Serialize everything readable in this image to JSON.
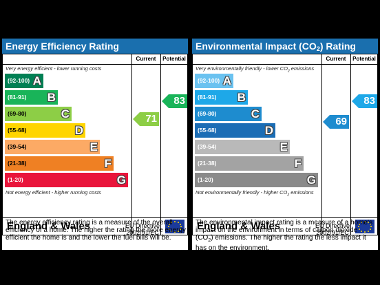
{
  "energy": {
    "title": "Energy Efficiency Rating",
    "col_current": "Current",
    "col_potential": "Potential",
    "top_note": "Very energy efficient - lower running costs",
    "bottom_note": "Not energy efficient - higher running costs",
    "bands": [
      {
        "range": "(92-100)",
        "letter": "A",
        "color": "#008054"
      },
      {
        "range": "(81-91)",
        "letter": "B",
        "color": "#19b459"
      },
      {
        "range": "(69-80)",
        "letter": "C",
        "color": "#8dce46"
      },
      {
        "range": "(55-68)",
        "letter": "D",
        "color": "#ffd500"
      },
      {
        "range": "(39-54)",
        "letter": "E",
        "color": "#fcaa65"
      },
      {
        "range": "(21-38)",
        "letter": "F",
        "color": "#ef8023"
      },
      {
        "range": "(1-20)",
        "letter": "G",
        "color": "#e9153b"
      }
    ],
    "current": "71",
    "current_color": "#8dce46",
    "potential": "83",
    "potential_color": "#19b459",
    "country": "England & Wales",
    "directive": "EU Directive 2002/91/EC",
    "description": "The energy efficiency rating is a measure of the overall efficiency of a home. The higher the rating the more energy efficient the home is and the lower the fuel bills will be."
  },
  "environment": {
    "title_main": "Environmental Impact (CO",
    "title_sub": "2",
    "title_end": ") Rating",
    "col_current": "Current",
    "col_potential": "Potential",
    "top_note_main": "Very environmentally friendly - lower CO",
    "top_note_sub": "2",
    "top_note_end": " emissions",
    "bottom_note_main": "Not environmentally friendly - higher CO",
    "bottom_note_sub": "2",
    "bottom_note_end": " emissions",
    "bands": [
      {
        "range": "(92-100)",
        "letter": "A",
        "color": "#6ac2f0"
      },
      {
        "range": "(81-91)",
        "letter": "B",
        "color": "#1ea8e8"
      },
      {
        "range": "(69-80)",
        "letter": "C",
        "color": "#1e8ccf"
      },
      {
        "range": "(55-68)",
        "letter": "D",
        "color": "#1b6db5"
      },
      {
        "range": "(39-54)",
        "letter": "E",
        "color": "#b9b9b9"
      },
      {
        "range": "(21-38)",
        "letter": "F",
        "color": "#a3a3a3"
      },
      {
        "range": "(1-20)",
        "letter": "G",
        "color": "#8a8a8a"
      }
    ],
    "current": "69",
    "current_color": "#1e8ccf",
    "potential": "83",
    "potential_color": "#1ea8e8",
    "country": "England & Wales",
    "directive": "EU Directive 2002/91/EC",
    "desc_1": "The environmental impact rating is a measure of a home's impact on the environment in terms of carbon dioxide (CO",
    "desc_sub": "2",
    "desc_2": ") emissions. The higher the rating the less impact it has on the environment."
  }
}
